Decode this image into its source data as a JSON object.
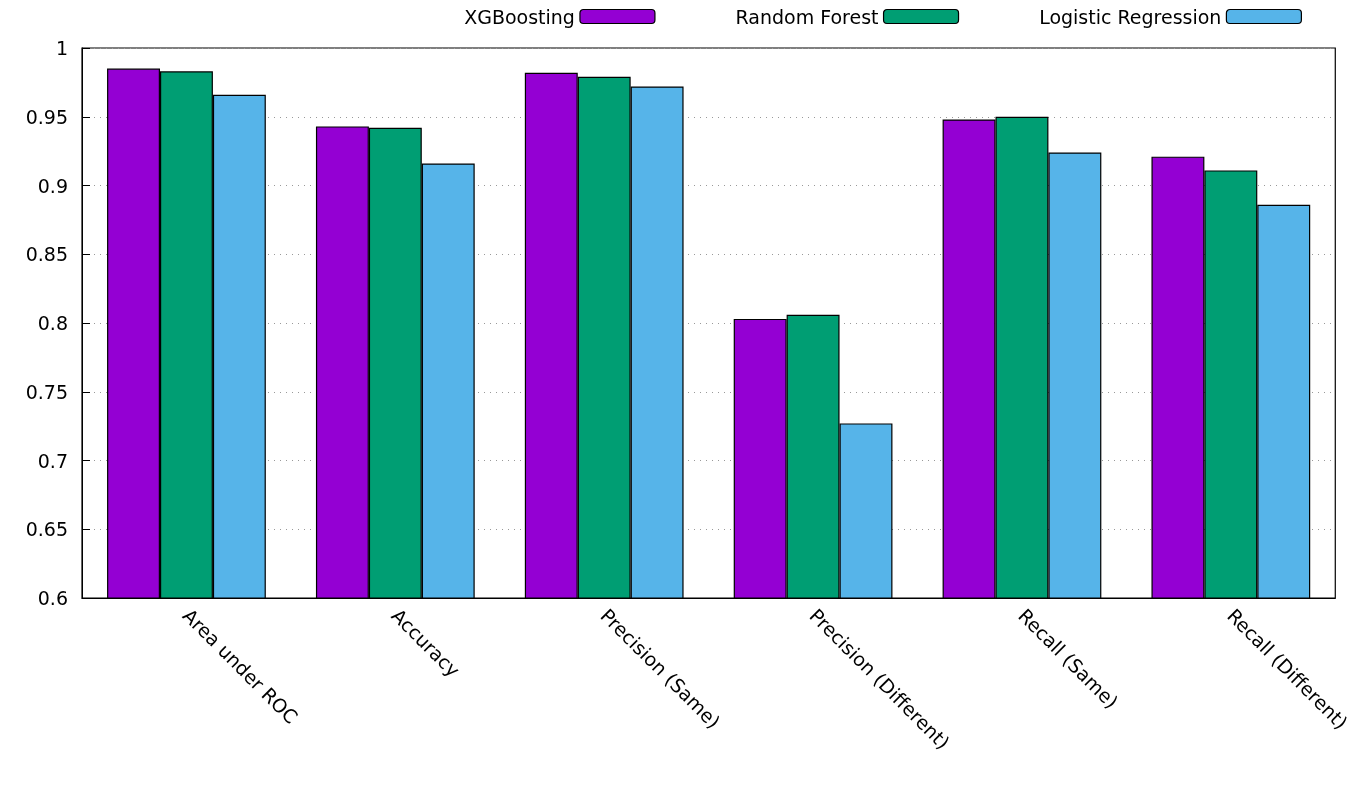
{
  "chart_data": {
    "type": "bar",
    "categories": [
      "Area under ROC",
      "Accuracy",
      "Precision (Same)",
      "Precision (Different)",
      "Recall (Same)",
      "Recall (Different)"
    ],
    "series": [
      {
        "name": "XGBoosting",
        "color": "#9400d3",
        "values": [
          0.985,
          0.943,
          0.982,
          0.803,
          0.948,
          0.921
        ]
      },
      {
        "name": "Random Forest",
        "color": "#009e73",
        "values": [
          0.983,
          0.942,
          0.979,
          0.806,
          0.95,
          0.911
        ]
      },
      {
        "name": "Logistic Regression",
        "color": "#56b4e9",
        "values": [
          0.966,
          0.916,
          0.972,
          0.727,
          0.924,
          0.886
        ]
      }
    ],
    "ylim": [
      0.6,
      1
    ],
    "yticks": [
      0.6,
      0.65,
      0.7,
      0.75,
      0.8,
      0.85,
      0.9,
      0.95,
      1
    ],
    "grid": "y",
    "legend": "top right"
  }
}
